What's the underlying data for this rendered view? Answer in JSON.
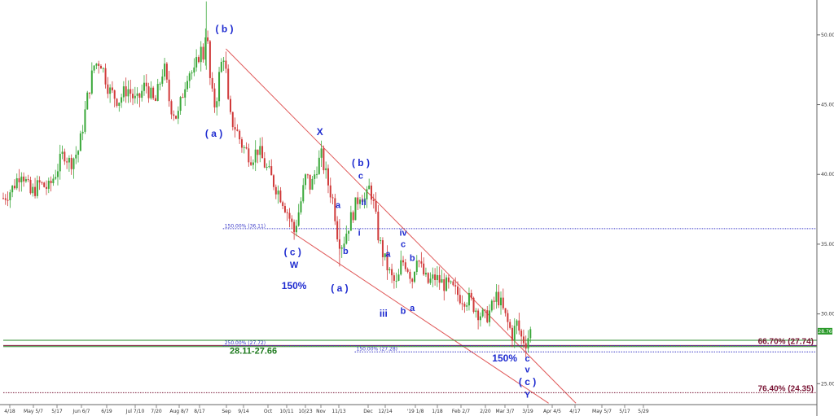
{
  "chart_data": {
    "type": "candlestick",
    "ylim": [
      23.5,
      52.5
    ],
    "y_ticks": [
      "50.00",
      "45.00",
      "40.00",
      "35.00",
      "30.00",
      "25.00"
    ],
    "x_ticks": [
      "4/18",
      "May 5/7",
      "5/17",
      "Jun 6/7",
      "6/19",
      "Jul 7/10",
      "7/20",
      "Aug 8/7",
      "8/17",
      "Sep",
      "9/14",
      "Oct",
      "10/11",
      "10/23",
      "Nov",
      "11/13",
      "Dec",
      "12/14",
      "'19 1/8",
      "1/18",
      "Feb 2/7",
      "2/20",
      "Mar 3/7",
      "3/19",
      "Apr 4/5",
      "4/17",
      "May 5/7",
      "5/17",
      "5/29"
    ],
    "last_price": "28.76",
    "price_path": [
      {
        "d": 0,
        "p": 38.3
      },
      {
        "d": 6,
        "p": 39.0
      },
      {
        "d": 12,
        "p": 40.3
      },
      {
        "d": 18,
        "p": 38.6
      },
      {
        "d": 24,
        "p": 39.3
      },
      {
        "d": 30,
        "p": 39.0
      },
      {
        "d": 36,
        "p": 40.5
      },
      {
        "d": 40,
        "p": 41.6
      },
      {
        "d": 44,
        "p": 40.8
      },
      {
        "d": 50,
        "p": 41.8
      },
      {
        "d": 56,
        "p": 45.8
      },
      {
        "d": 60,
        "p": 47.8
      },
      {
        "d": 64,
        "p": 48.2
      },
      {
        "d": 70,
        "p": 46.0
      },
      {
        "d": 76,
        "p": 45.3
      },
      {
        "d": 82,
        "p": 46.2
      },
      {
        "d": 88,
        "p": 45.1
      },
      {
        "d": 94,
        "p": 46.5
      },
      {
        "d": 100,
        "p": 45.0
      },
      {
        "d": 106,
        "p": 47.8
      },
      {
        "d": 110,
        "p": 45.0
      },
      {
        "d": 115,
        "p": 44.0
      },
      {
        "d": 118,
        "p": 45.6
      },
      {
        "d": 122,
        "p": 47.5
      },
      {
        "d": 126,
        "p": 47.2
      },
      {
        "d": 130,
        "p": 49.0
      },
      {
        "d": 132,
        "p": 48.5
      },
      {
        "d": 134,
        "p": 50.8
      },
      {
        "d": 137,
        "p": 46.0
      },
      {
        "d": 140,
        "p": 44.8
      },
      {
        "d": 143,
        "p": 47.5
      },
      {
        "d": 146,
        "p": 48.8
      },
      {
        "d": 149,
        "p": 44.2
      },
      {
        "d": 153,
        "p": 43.4
      },
      {
        "d": 158,
        "p": 42.0
      },
      {
        "d": 164,
        "p": 41.2
      },
      {
        "d": 168,
        "p": 41.8
      },
      {
        "d": 173,
        "p": 40.6
      },
      {
        "d": 178,
        "p": 39.5
      },
      {
        "d": 184,
        "p": 38.3
      },
      {
        "d": 188,
        "p": 37.2
      },
      {
        "d": 192,
        "p": 35.9
      },
      {
        "d": 196,
        "p": 37.8
      },
      {
        "d": 200,
        "p": 40.0
      },
      {
        "d": 203,
        "p": 39.0
      },
      {
        "d": 207,
        "p": 40.6
      },
      {
        "d": 210,
        "p": 41.3
      },
      {
        "d": 214,
        "p": 39.5
      },
      {
        "d": 218,
        "p": 38.0
      },
      {
        "d": 221,
        "p": 35.4
      },
      {
        "d": 224,
        "p": 35.0
      },
      {
        "d": 228,
        "p": 36.4
      },
      {
        "d": 232,
        "p": 37.6
      },
      {
        "d": 236,
        "p": 38.8
      },
      {
        "d": 239,
        "p": 38.0
      },
      {
        "d": 242,
        "p": 39.2
      },
      {
        "d": 245,
        "p": 37.5
      },
      {
        "d": 248,
        "p": 35.3
      },
      {
        "d": 252,
        "p": 33.8
      },
      {
        "d": 256,
        "p": 32.6
      },
      {
        "d": 260,
        "p": 32.0
      },
      {
        "d": 263,
        "p": 33.8
      },
      {
        "d": 266,
        "p": 33.6
      },
      {
        "d": 270,
        "p": 32.5
      },
      {
        "d": 273,
        "p": 34.3
      },
      {
        "d": 276,
        "p": 33.2
      },
      {
        "d": 280,
        "p": 32.2
      },
      {
        "d": 285,
        "p": 32.6
      },
      {
        "d": 290,
        "p": 32.2
      },
      {
        "d": 296,
        "p": 31.8
      },
      {
        "d": 302,
        "p": 31.2
      },
      {
        "d": 308,
        "p": 31.0
      },
      {
        "d": 313,
        "p": 30.2
      },
      {
        "d": 318,
        "p": 29.7
      },
      {
        "d": 322,
        "p": 30.3
      },
      {
        "d": 326,
        "p": 31.4
      },
      {
        "d": 329,
        "p": 30.5
      },
      {
        "d": 332,
        "p": 29.6
      },
      {
        "d": 336,
        "p": 28.5
      },
      {
        "d": 339,
        "p": 29.3
      },
      {
        "d": 342,
        "p": 28.3
      },
      {
        "d": 345,
        "p": 28.0
      },
      {
        "d": 348,
        "p": 28.76
      }
    ],
    "channel_lines": [
      {
        "from": {
          "d": 147,
          "p": 49.0
        },
        "to": {
          "d": 378,
          "p": 23.6
        }
      },
      {
        "from": {
          "d": 190,
          "p": 35.9
        },
        "to": {
          "d": 360,
          "p": 23.6
        }
      }
    ],
    "hlines": [
      {
        "p": 36.11,
        "label": "150.00% (36.11)",
        "color": "#3a3ac8",
        "style": "dotted",
        "from_d": 145
      },
      {
        "p": 28.11,
        "label": "",
        "color": "#2a8a2a",
        "style": "solid",
        "from_d": 0
      },
      {
        "p": 27.74,
        "label": "",
        "color": "#7a1535",
        "style": "solid",
        "from_d": 0
      },
      {
        "p": 27.72,
        "label": "250.00% (27.72)",
        "color": "#3a3ac8",
        "style": "dotted",
        "from_d": 145
      },
      {
        "p": 27.66,
        "label": "",
        "color": "#2a8a2a",
        "style": "solid",
        "from_d": 0
      },
      {
        "p": 27.28,
        "label": "150.00% (27.28)",
        "color": "#3a3ac8",
        "style": "dotted",
        "from_d": 232
      },
      {
        "p": 24.35,
        "label": "",
        "color": "#7a1535",
        "style": "dotted",
        "from_d": 0
      }
    ],
    "fib_labels": [
      {
        "text": "66.70% (27.74)",
        "p": 27.74
      },
      {
        "text": "76.40% (24.35)",
        "p": 24.35
      }
    ],
    "zone_label": "28.11-27.66",
    "wave_labels": [
      {
        "text": "( b )",
        "d": 146,
        "p": 50.2
      },
      {
        "text": "( a )",
        "d": 139,
        "p": 42.7
      },
      {
        "text": "X",
        "d": 209,
        "p": 42.8
      },
      {
        "text": "( b )",
        "d": 236,
        "p": 40.6
      },
      {
        "text": "c",
        "d": 236,
        "p": 39.7
      },
      {
        "text": "ii",
        "d": 238,
        "p": 37.8
      },
      {
        "text": "a",
        "d": 221,
        "p": 37.6
      },
      {
        "text": "i",
        "d": 235,
        "p": 35.6
      },
      {
        "text": "b",
        "d": 226,
        "p": 34.3
      },
      {
        "text": "( c )",
        "d": 191,
        "p": 34.2
      },
      {
        "text": "W",
        "d": 192,
        "p": 33.3
      },
      {
        "text": "150%",
        "d": 192,
        "p": 31.8
      },
      {
        "text": "( a )",
        "d": 222,
        "p": 31.6
      },
      {
        "text": "iv",
        "d": 264,
        "p": 35.6
      },
      {
        "text": "c",
        "d": 264,
        "p": 34.8
      },
      {
        "text": "a",
        "d": 254,
        "p": 34.1
      },
      {
        "text": "b",
        "d": 270,
        "p": 33.8
      },
      {
        "text": "iii",
        "d": 251,
        "p": 29.8
      },
      {
        "text": "b",
        "d": 264,
        "p": 30.0
      },
      {
        "text": "a",
        "d": 270,
        "p": 30.2
      },
      {
        "text": "150%",
        "d": 331,
        "p": 26.6
      },
      {
        "text": "c",
        "d": 346,
        "p": 26.6
      },
      {
        "text": "v",
        "d": 346,
        "p": 25.8
      },
      {
        "text": "( c )",
        "d": 346,
        "p": 24.9
      },
      {
        "text": "Y",
        "d": 346,
        "p": 24.0
      }
    ]
  }
}
